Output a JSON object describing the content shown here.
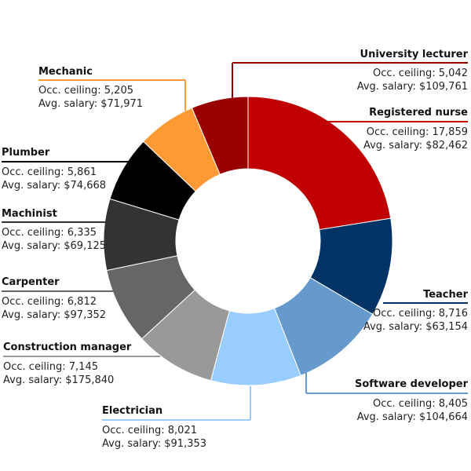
{
  "chart_data": {
    "type": "pie",
    "donut": true,
    "start_angle_deg": 0,
    "direction": "clockwise",
    "ceiling_prefix": "Occ. ceiling: ",
    "salary_prefix": "Avg. salary: ",
    "slices": [
      {
        "name": "Registered nurse",
        "ceiling": 17859,
        "ceiling_text": "17,859",
        "salary_text": "$82,462",
        "color": "#c00000"
      },
      {
        "name": "Teacher",
        "ceiling": 8716,
        "ceiling_text": "8,716",
        "salary_text": "$63,154",
        "color": "#003366"
      },
      {
        "name": "Software developer",
        "ceiling": 8405,
        "ceiling_text": "8,405",
        "salary_text": "$104,664",
        "color": "#6699cc"
      },
      {
        "name": "Electrician",
        "ceiling": 8021,
        "ceiling_text": "8,021",
        "salary_text": "$91,353",
        "color": "#99ccff"
      },
      {
        "name": "Construction manager",
        "ceiling": 7145,
        "ceiling_text": "7,145",
        "salary_text": "$175,840",
        "color": "#999999"
      },
      {
        "name": "Carpenter",
        "ceiling": 6812,
        "ceiling_text": "6,812",
        "salary_text": "$97,352",
        "color": "#666666"
      },
      {
        "name": "Machinist",
        "ceiling": 6335,
        "ceiling_text": "6,335",
        "salary_text": "$69,125",
        "color": "#333333"
      },
      {
        "name": "Plumber",
        "ceiling": 5861,
        "ceiling_text": "5,861",
        "salary_text": "$74,668",
        "color": "#000000"
      },
      {
        "name": "Mechanic",
        "ceiling": 5205,
        "ceiling_text": "5,205",
        "salary_text": "$71,971",
        "color": "#ff9933"
      },
      {
        "name": "University lecturer",
        "ceiling": 5042,
        "ceiling_text": "5,042",
        "salary_text": "$109,761",
        "color": "#990000"
      }
    ]
  }
}
